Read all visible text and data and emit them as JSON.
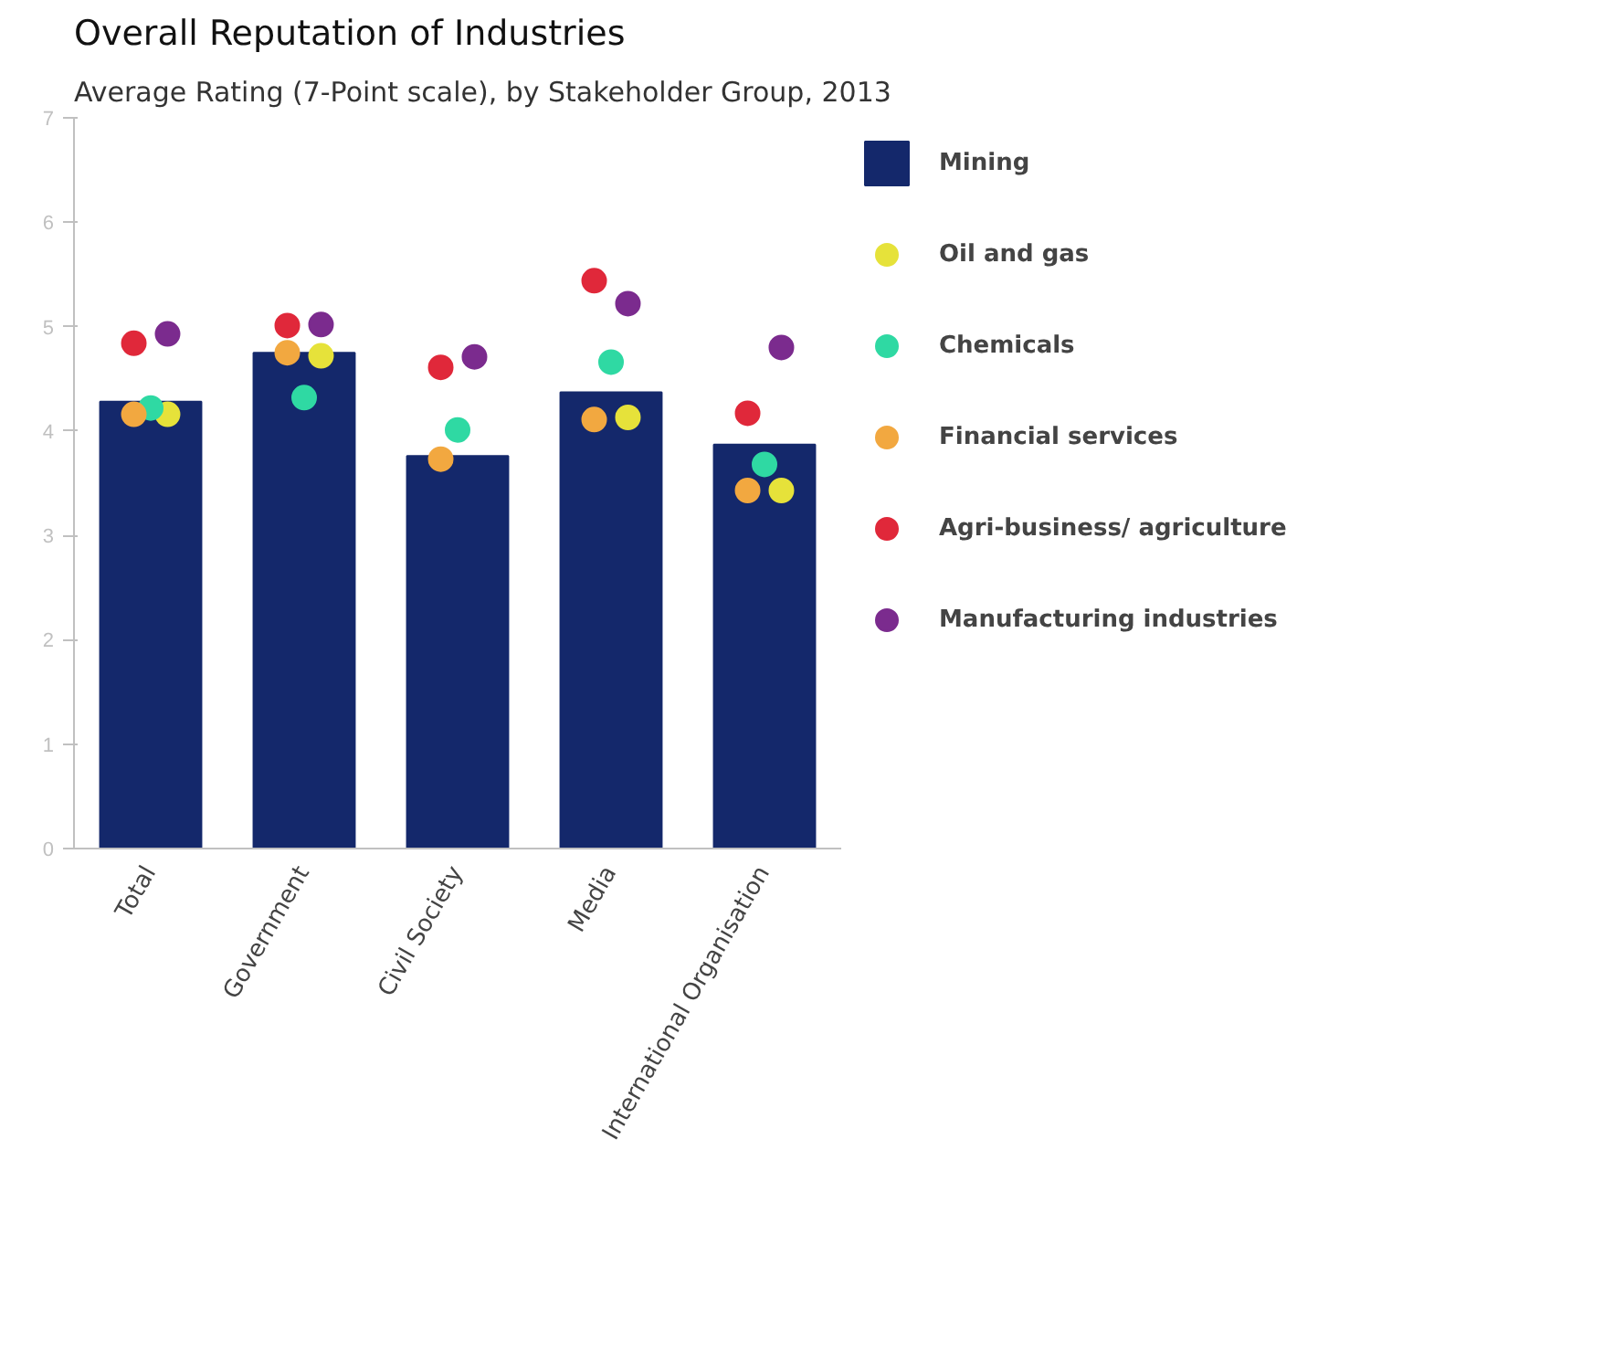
{
  "chart_data": {
    "type": "bar",
    "title": "Overall Reputation of Industries",
    "subtitle": "Average Rating (7-Point scale), by Stakeholder Group, 2013",
    "categories": [
      "Total",
      "Government",
      "Civil Society",
      "Media",
      "International Organisation"
    ],
    "ylim": [
      0,
      7
    ],
    "yticks": [
      0,
      1,
      2,
      3,
      4,
      5,
      6,
      7
    ],
    "grid": false,
    "legend": "right",
    "marker": "circle",
    "series": [
      {
        "name": "Mining",
        "color": "#14286b",
        "values": [
          4.28,
          4.75,
          3.76,
          4.37,
          3.87
        ]
      },
      {
        "name": "Oil and gas",
        "type": "scatter",
        "color": "#e6e23a",
        "values": [
          4.16,
          4.72,
          null,
          4.13,
          3.43
        ]
      },
      {
        "name": "Chemicals",
        "type": "scatter",
        "color": "#2fd9a3",
        "values": [
          4.22,
          4.32,
          4.01,
          4.66,
          3.68
        ]
      },
      {
        "name": "Financial services",
        "type": "scatter",
        "color": "#f2a840",
        "values": [
          4.16,
          4.75,
          3.73,
          4.11,
          3.43
        ]
      },
      {
        "name": "Agri-business/ agriculture",
        "type": "scatter",
        "color": "#e0283a",
        "values": [
          4.84,
          5.01,
          4.61,
          5.44,
          4.17
        ]
      },
      {
        "name": "Manufacturing industries",
        "type": "scatter",
        "color": "#7b2b8e",
        "values": [
          4.93,
          5.02,
          4.71,
          5.22,
          4.8
        ]
      }
    ]
  }
}
